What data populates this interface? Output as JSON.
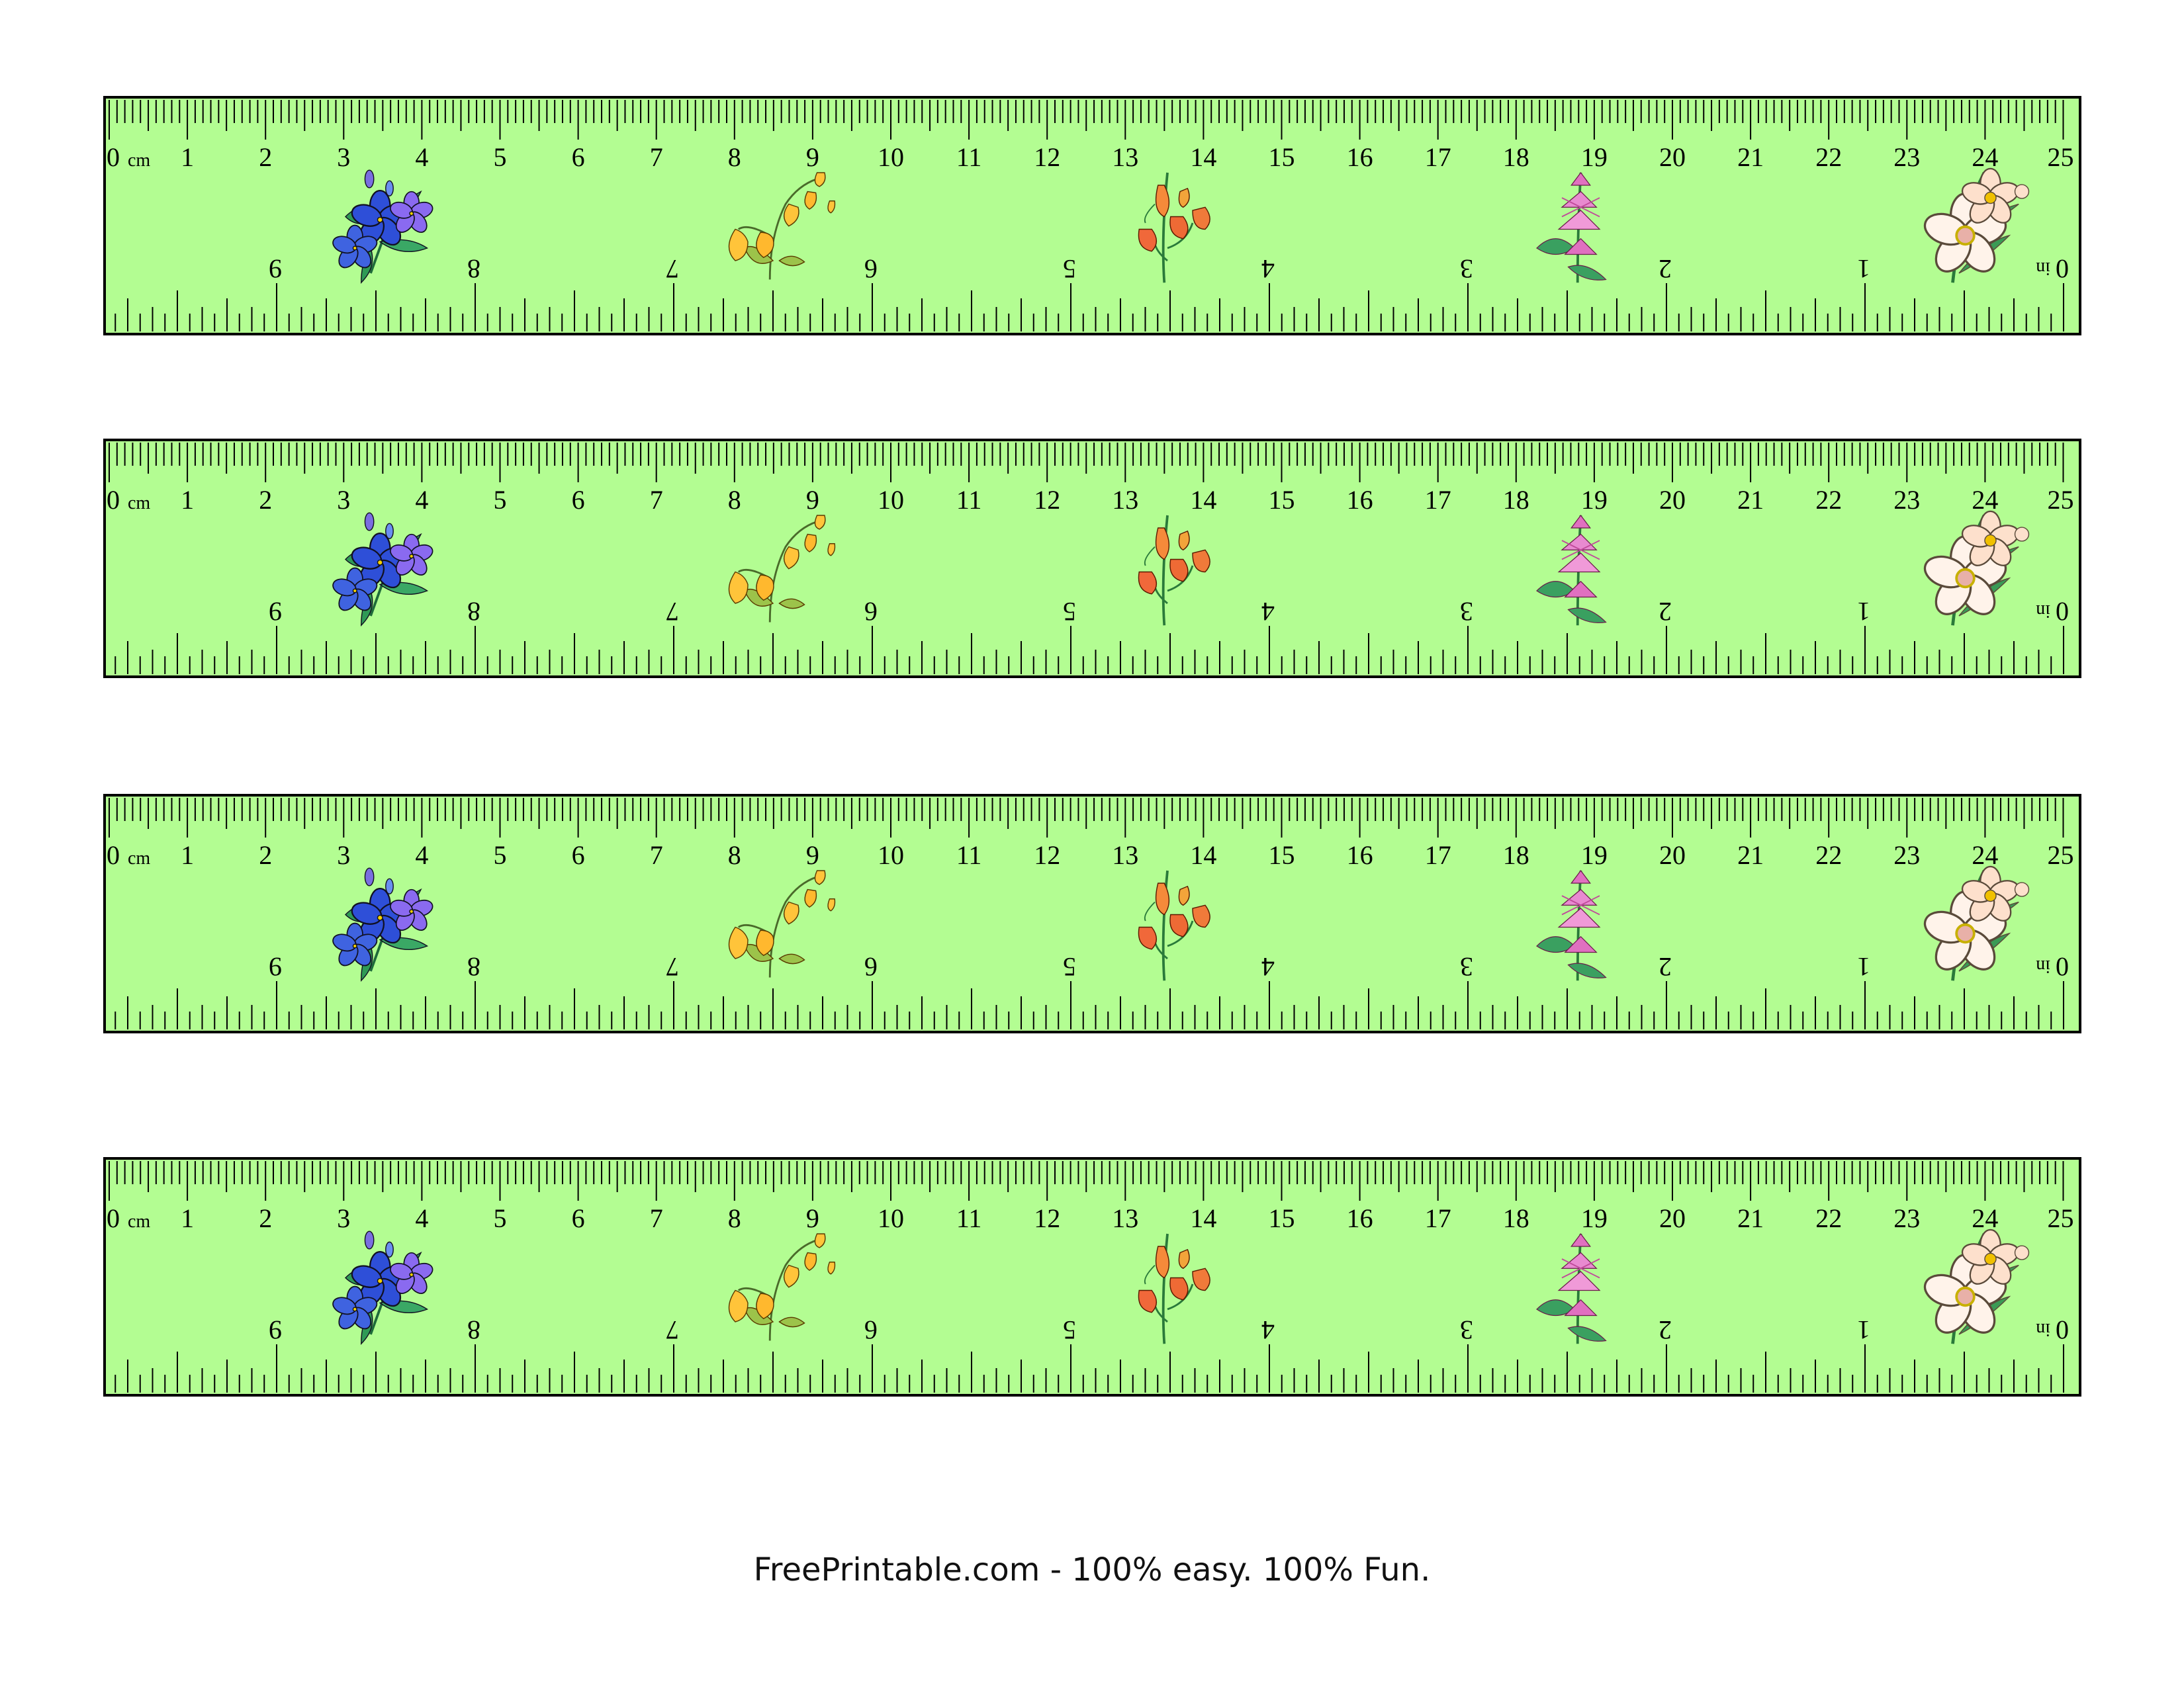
{
  "sheet": {
    "ruler_count": 4,
    "ruler_color": "#b3fd92",
    "border_color": "#000000",
    "cm_scale": {
      "unit_label": "cm",
      "labels": [
        "0",
        "1",
        "2",
        "3",
        "4",
        "5",
        "6",
        "7",
        "8",
        "9",
        "10",
        "11",
        "12",
        "13",
        "14",
        "15",
        "16",
        "17",
        "18",
        "19",
        "20",
        "21",
        "22",
        "23",
        "24",
        "25"
      ],
      "subdivision": "millimeters"
    },
    "inch_scale": {
      "unit_label": "in",
      "labels": [
        "0",
        "1",
        "2",
        "3",
        "4",
        "5",
        "6",
        "7",
        "8",
        "9"
      ],
      "subdivision": "sixteenths",
      "orientation": "upside-down, right to left"
    },
    "decorations": [
      "blue-flower-icon",
      "physalis-lantern-icon",
      "orange-lily-icon",
      "pink-flower-icon",
      "white-anemone-icon"
    ]
  },
  "footer": {
    "text": "FreePrintable.com - 100% easy. 100% Fun."
  }
}
